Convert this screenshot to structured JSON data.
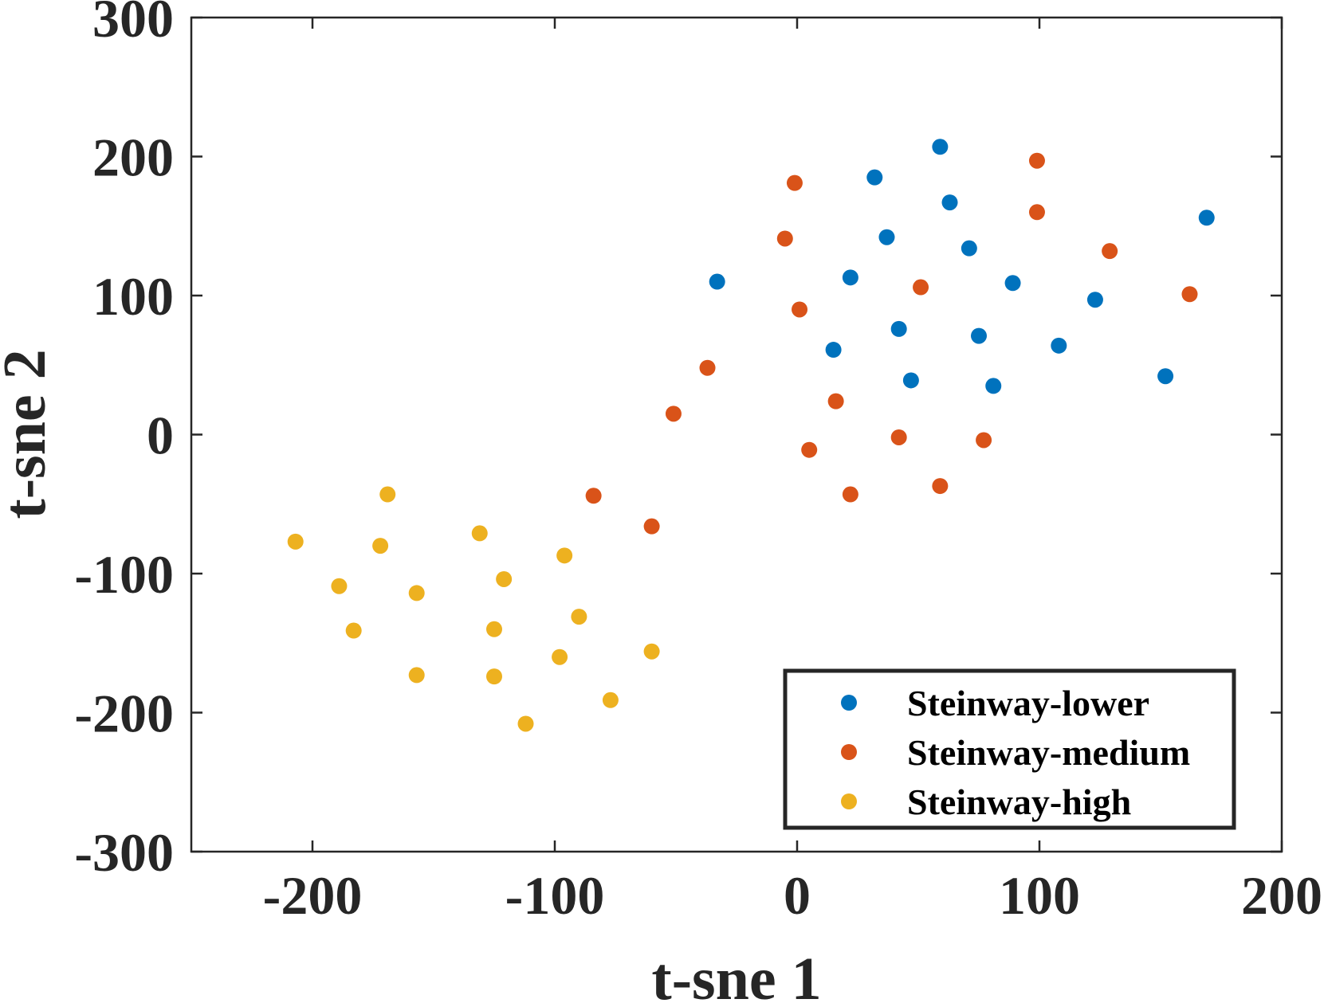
{
  "chart_data": {
    "type": "scatter",
    "title": "",
    "xlabel": "t-sne 1",
    "ylabel": "t-sne 2",
    "xlim": [
      -250,
      200
    ],
    "ylim": [
      -300,
      300
    ],
    "xticks": [
      -200,
      -100,
      0,
      100,
      200
    ],
    "yticks": [
      -300,
      -200,
      -100,
      0,
      100,
      200,
      300
    ],
    "xtick_labels": [
      "-200",
      "-100",
      "0",
      "100",
      "200"
    ],
    "ytick_labels": [
      "-300",
      "-200",
      "-100",
      "0",
      "100",
      "200",
      "300"
    ],
    "grid": false,
    "legend_position": "bottom-right",
    "series": [
      {
        "name": "Steinway-lower",
        "color": "#0072BD",
        "points": [
          [
            -33,
            110
          ],
          [
            15,
            61
          ],
          [
            22,
            113
          ],
          [
            32,
            185
          ],
          [
            37,
            142
          ],
          [
            42,
            76
          ],
          [
            47,
            39
          ],
          [
            59,
            207
          ],
          [
            63,
            167
          ],
          [
            71,
            134
          ],
          [
            75,
            71
          ],
          [
            81,
            35
          ],
          [
            89,
            109
          ],
          [
            108,
            64
          ],
          [
            123,
            97
          ],
          [
            152,
            42
          ],
          [
            169,
            156
          ]
        ]
      },
      {
        "name": "Steinway-medium",
        "color": "#D95319",
        "points": [
          [
            -84,
            -44
          ],
          [
            -60,
            -66
          ],
          [
            -51,
            15
          ],
          [
            -37,
            48
          ],
          [
            -5,
            141
          ],
          [
            -1,
            181
          ],
          [
            1,
            90
          ],
          [
            5,
            -11
          ],
          [
            16,
            24
          ],
          [
            22,
            -43
          ],
          [
            42,
            -2
          ],
          [
            51,
            106
          ],
          [
            59,
            -37
          ],
          [
            77,
            -4
          ],
          [
            99,
            160
          ],
          [
            99,
            197
          ],
          [
            129,
            132
          ],
          [
            162,
            101
          ]
        ]
      },
      {
        "name": "Steinway-high",
        "color": "#EDB120",
        "points": [
          [
            -207,
            -77
          ],
          [
            -189,
            -109
          ],
          [
            -183,
            -141
          ],
          [
            -172,
            -80
          ],
          [
            -169,
            -43
          ],
          [
            -157,
            -114
          ],
          [
            -157,
            -173
          ],
          [
            -131,
            -71
          ],
          [
            -125,
            -140
          ],
          [
            -125,
            -174
          ],
          [
            -121,
            -104
          ],
          [
            -112,
            -208
          ],
          [
            -98,
            -160
          ],
          [
            -96,
            -87
          ],
          [
            -90,
            -131
          ],
          [
            -77,
            -191
          ],
          [
            -60,
            -156
          ]
        ]
      }
    ]
  }
}
